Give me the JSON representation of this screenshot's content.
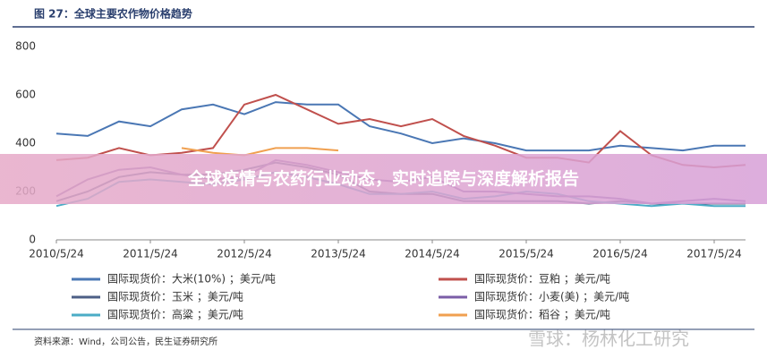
{
  "chart_data": {
    "type": "line",
    "title": "图 27：全球主要农作物价格趋势",
    "categories": [
      "2010/5/24",
      null,
      null,
      "2011/5/24",
      null,
      null,
      "2012/5/24",
      null,
      null,
      "2013/5/24",
      null,
      null,
      "2014/5/24",
      null,
      null,
      "2015/5/24",
      null,
      null,
      "2016/5/24",
      null,
      null,
      "2017/5/24",
      null
    ],
    "ylim": [
      0,
      800
    ],
    "yticks": [
      0,
      200,
      400,
      600,
      800
    ],
    "series": [
      {
        "name": "国际现货价：大米(10%) ；美元/吨",
        "color": "#4a77b4",
        "values": [
          440,
          430,
          490,
          470,
          540,
          560,
          520,
          570,
          560,
          560,
          470,
          440,
          400,
          420,
          400,
          370,
          370,
          370,
          390,
          380,
          370,
          390,
          390
        ]
      },
      {
        "name": "国际现货价：玉米 ；美元/吨",
        "color": "#4d5f86",
        "values": [
          160,
          200,
          260,
          280,
          270,
          270,
          290,
          320,
          300,
          270,
          200,
          190,
          190,
          160,
          160,
          160,
          160,
          150,
          160,
          150,
          150,
          150,
          150
        ]
      },
      {
        "name": "国际现货价：高粱 ；美元/吨",
        "color": "#4bacc6",
        "values": [
          140,
          170,
          240,
          250,
          240,
          230,
          250,
          280,
          260,
          230,
          190,
          190,
          200,
          170,
          180,
          200,
          190,
          160,
          150,
          140,
          150,
          140,
          140
        ]
      },
      {
        "name": "国际现货价：豆粕 ；美元/吨",
        "color": "#c0504d",
        "values": [
          330,
          340,
          380,
          350,
          360,
          380,
          560,
          600,
          540,
          480,
          500,
          470,
          500,
          430,
          390,
          340,
          340,
          320,
          450,
          350,
          310,
          300,
          310
        ]
      },
      {
        "name": "国际现货价：小麦(美) ；美元/吨",
        "color": "#7b5ea7",
        "values": [
          180,
          250,
          290,
          300,
          270,
          250,
          260,
          330,
          310,
          280,
          250,
          240,
          260,
          200,
          200,
          190,
          180,
          180,
          170,
          150,
          160,
          170,
          160
        ]
      },
      {
        "name": "国际现货价：稻谷 ；美元/吨",
        "color": "#f0a050",
        "values": [
          null,
          null,
          null,
          null,
          380,
          360,
          350,
          380,
          380,
          370,
          null,
          null,
          null,
          null,
          null,
          null,
          null,
          null,
          null,
          null,
          null,
          null,
          null
        ]
      }
    ],
    "source": "资料来源：Wind，公司公告，民生证券研究所"
  },
  "banner": "全球疫情与农药行业动态，实时追踪与深度解析报告",
  "watermark": "雪球：杨林化工研究"
}
